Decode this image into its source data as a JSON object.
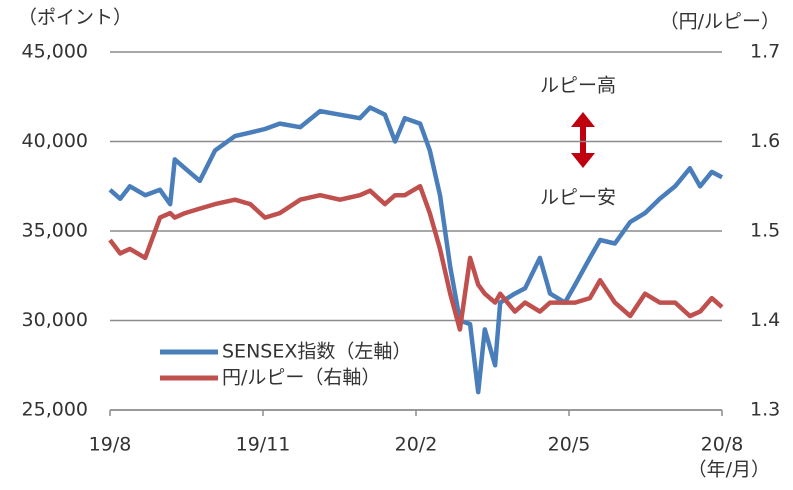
{
  "chart_data": {
    "type": "line",
    "y_label": "（ポイント）",
    "y2_label": "（円/ルピー）",
    "x_label": "（年/月）",
    "annotations": [
      "ルピー高",
      "ルピー安"
    ],
    "x": [
      0,
      0.2,
      0.39,
      0.69,
      0.98,
      1.18,
      1.27,
      1.47,
      1.76,
      2.06,
      2.45,
      2.75,
      3.04,
      3.33,
      3.73,
      4.12,
      4.51,
      4.9,
      5.1,
      5.39,
      5.59,
      5.78,
      6.08,
      6.27,
      6.47,
      6.67,
      6.86,
      7.06,
      7.22,
      7.35,
      7.55,
      7.65,
      7.94,
      8.14,
      8.43,
      8.63,
      8.92,
      9.12,
      9.41,
      9.61,
      9.9,
      10.2,
      10.49,
      10.78,
      11.08,
      11.37,
      11.57,
      11.8,
      12
    ],
    "series": [
      {
        "name": "SENSEX指数（左軸）",
        "color": "#4a7ebb",
        "axis": "y",
        "values": [
          37300,
          36800,
          37500,
          37000,
          37300,
          36500,
          39000,
          38500,
          37800,
          39500,
          40300,
          40500,
          40700,
          41000,
          40800,
          41700,
          41500,
          41300,
          41900,
          41500,
          40000,
          41300,
          41000,
          39500,
          37000,
          33000,
          30000,
          29800,
          26000,
          29500,
          27500,
          31000,
          31500,
          31800,
          33500,
          31500,
          31000,
          32000,
          33500,
          34500,
          34300,
          35500,
          36000,
          36800,
          37500,
          38500,
          37500,
          38300,
          38000
        ]
      },
      {
        "name": "円/ルピー（右軸）",
        "color": "#c0504d",
        "axis": "y2",
        "values": [
          1.49,
          1.475,
          1.48,
          1.47,
          1.515,
          1.52,
          1.515,
          1.52,
          1.525,
          1.53,
          1.535,
          1.53,
          1.515,
          1.52,
          1.535,
          1.54,
          1.535,
          1.54,
          1.545,
          1.53,
          1.54,
          1.54,
          1.55,
          1.52,
          1.48,
          1.43,
          1.39,
          1.47,
          1.44,
          1.43,
          1.42,
          1.43,
          1.41,
          1.42,
          1.41,
          1.42,
          1.42,
          1.42,
          1.425,
          1.445,
          1.42,
          1.405,
          1.43,
          1.42,
          1.42,
          1.405,
          1.41,
          1.425,
          1.415
        ]
      }
    ],
    "xlim": [
      0,
      12
    ],
    "xticks": [
      {
        "value": 0,
        "label": "19/8"
      },
      {
        "value": 3,
        "label": "19/11"
      },
      {
        "value": 6,
        "label": "20/2"
      },
      {
        "value": 9,
        "label": "20/5"
      },
      {
        "value": 12,
        "label": "20/8"
      }
    ],
    "ylim": [
      25000,
      45000
    ],
    "yticks": [
      {
        "value": 25000,
        "label": "25,000"
      },
      {
        "value": 30000,
        "label": "30,000"
      },
      {
        "value": 35000,
        "label": "35,000"
      },
      {
        "value": 40000,
        "label": "40,000"
      },
      {
        "value": 45000,
        "label": "45,000"
      }
    ],
    "y2lim": [
      1.3,
      1.7
    ],
    "y2ticks": [
      1.3,
      1.4,
      1.5,
      1.6,
      1.7
    ],
    "grid": true
  }
}
